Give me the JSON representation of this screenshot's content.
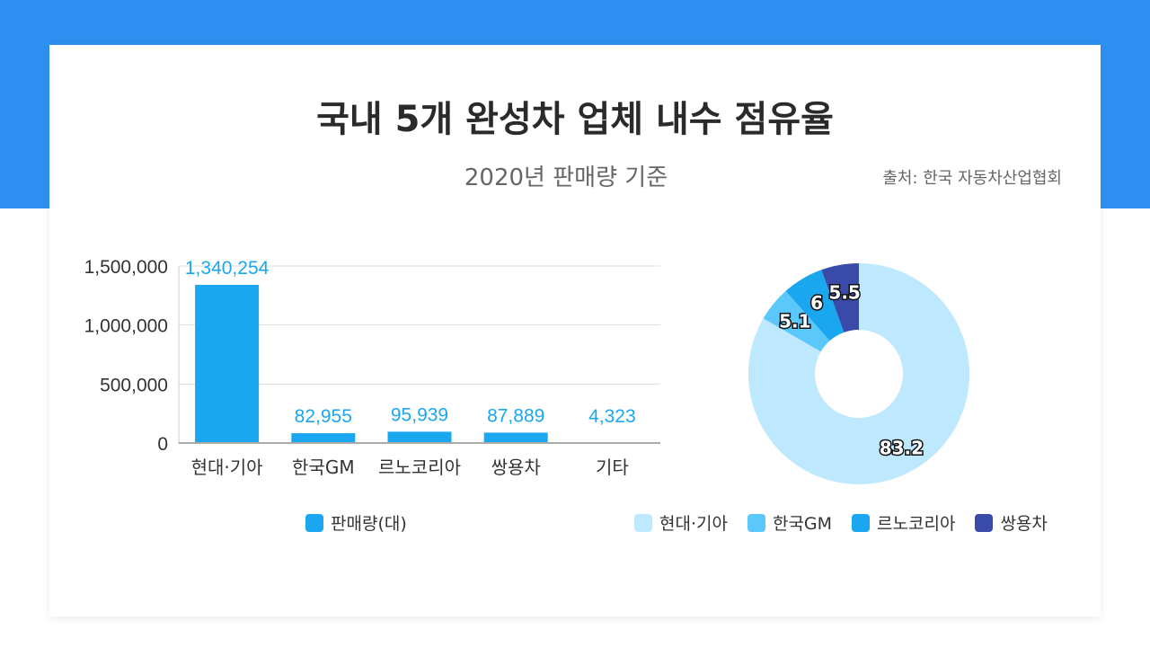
{
  "title": "국내 5개 완성차 업체 내수 점유율",
  "subtitle": "2020년 판매량 기준",
  "source": "출처: 한국 자동차산업협회",
  "chart_data": [
    {
      "type": "bar",
      "categories": [
        "현대·기아",
        "한국GM",
        "르노코리아",
        "쌍용차",
        "기타"
      ],
      "series": [
        {
          "name": "판매량(대)",
          "values": [
            1340254,
            82955,
            95939,
            87889,
            4323
          ],
          "labels": [
            "1,340,254",
            "82,955",
            "95,939",
            "87,889",
            "4,323"
          ]
        }
      ],
      "ylim": [
        0,
        1500000
      ],
      "yticks": [
        "0",
        "500,000",
        "1,000,000",
        "1,500,000"
      ],
      "grid": true,
      "legend": "bottom",
      "color": "#1aa7ef",
      "label_color": "#1aa7ef"
    },
    {
      "type": "pie",
      "donut": true,
      "categories": [
        "현대·기아",
        "한국GM",
        "르노코리아",
        "쌍용차"
      ],
      "values": [
        83.2,
        5.1,
        6,
        5.5
      ],
      "labels": [
        "83.2",
        "5.1",
        "6",
        "5.5"
      ],
      "colors": [
        "#bde8fd",
        "#5bc8fb",
        "#1aa7ef",
        "#3a4aa8"
      ],
      "legend": "bottom"
    }
  ]
}
